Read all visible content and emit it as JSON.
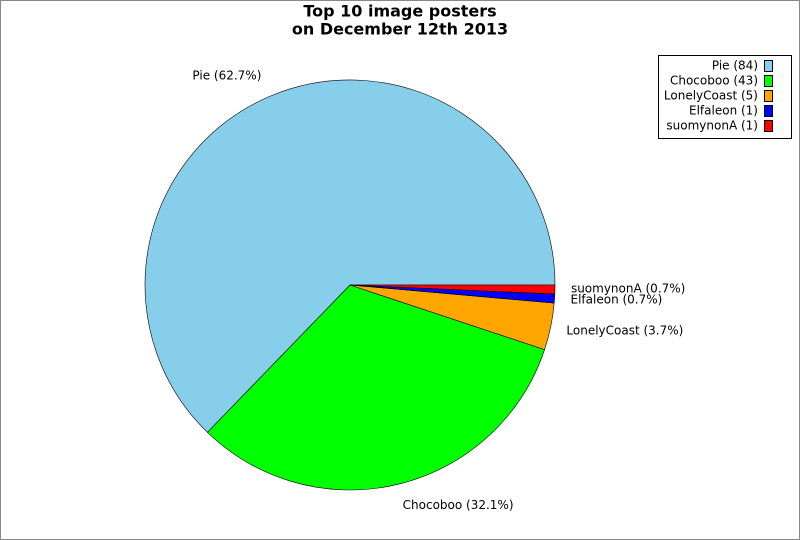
{
  "chart_data": {
    "type": "pie",
    "title": [
      "Top 10 image posters",
      "on December 12th 2013"
    ],
    "categories": [
      "Pie (84)",
      "Chocoboo (43)",
      "LonelyCoast (5)",
      "Elfaleon (1)",
      "suomynonA (1)"
    ],
    "values": [
      62.7,
      32.1,
      3.7,
      0.7,
      0.7
    ],
    "value_labels": [
      "Pie (62.7%)",
      "Chocoboo (32.1%)",
      "LonelyCoast (3.7%)",
      "Elfaleon (0.7%)",
      "suomynonA (0.7%)"
    ],
    "colors": [
      "#87ceeb",
      "#00ff00",
      "#ffa500",
      "#0000ff",
      "#ff0000"
    ],
    "legend": "upper right"
  }
}
